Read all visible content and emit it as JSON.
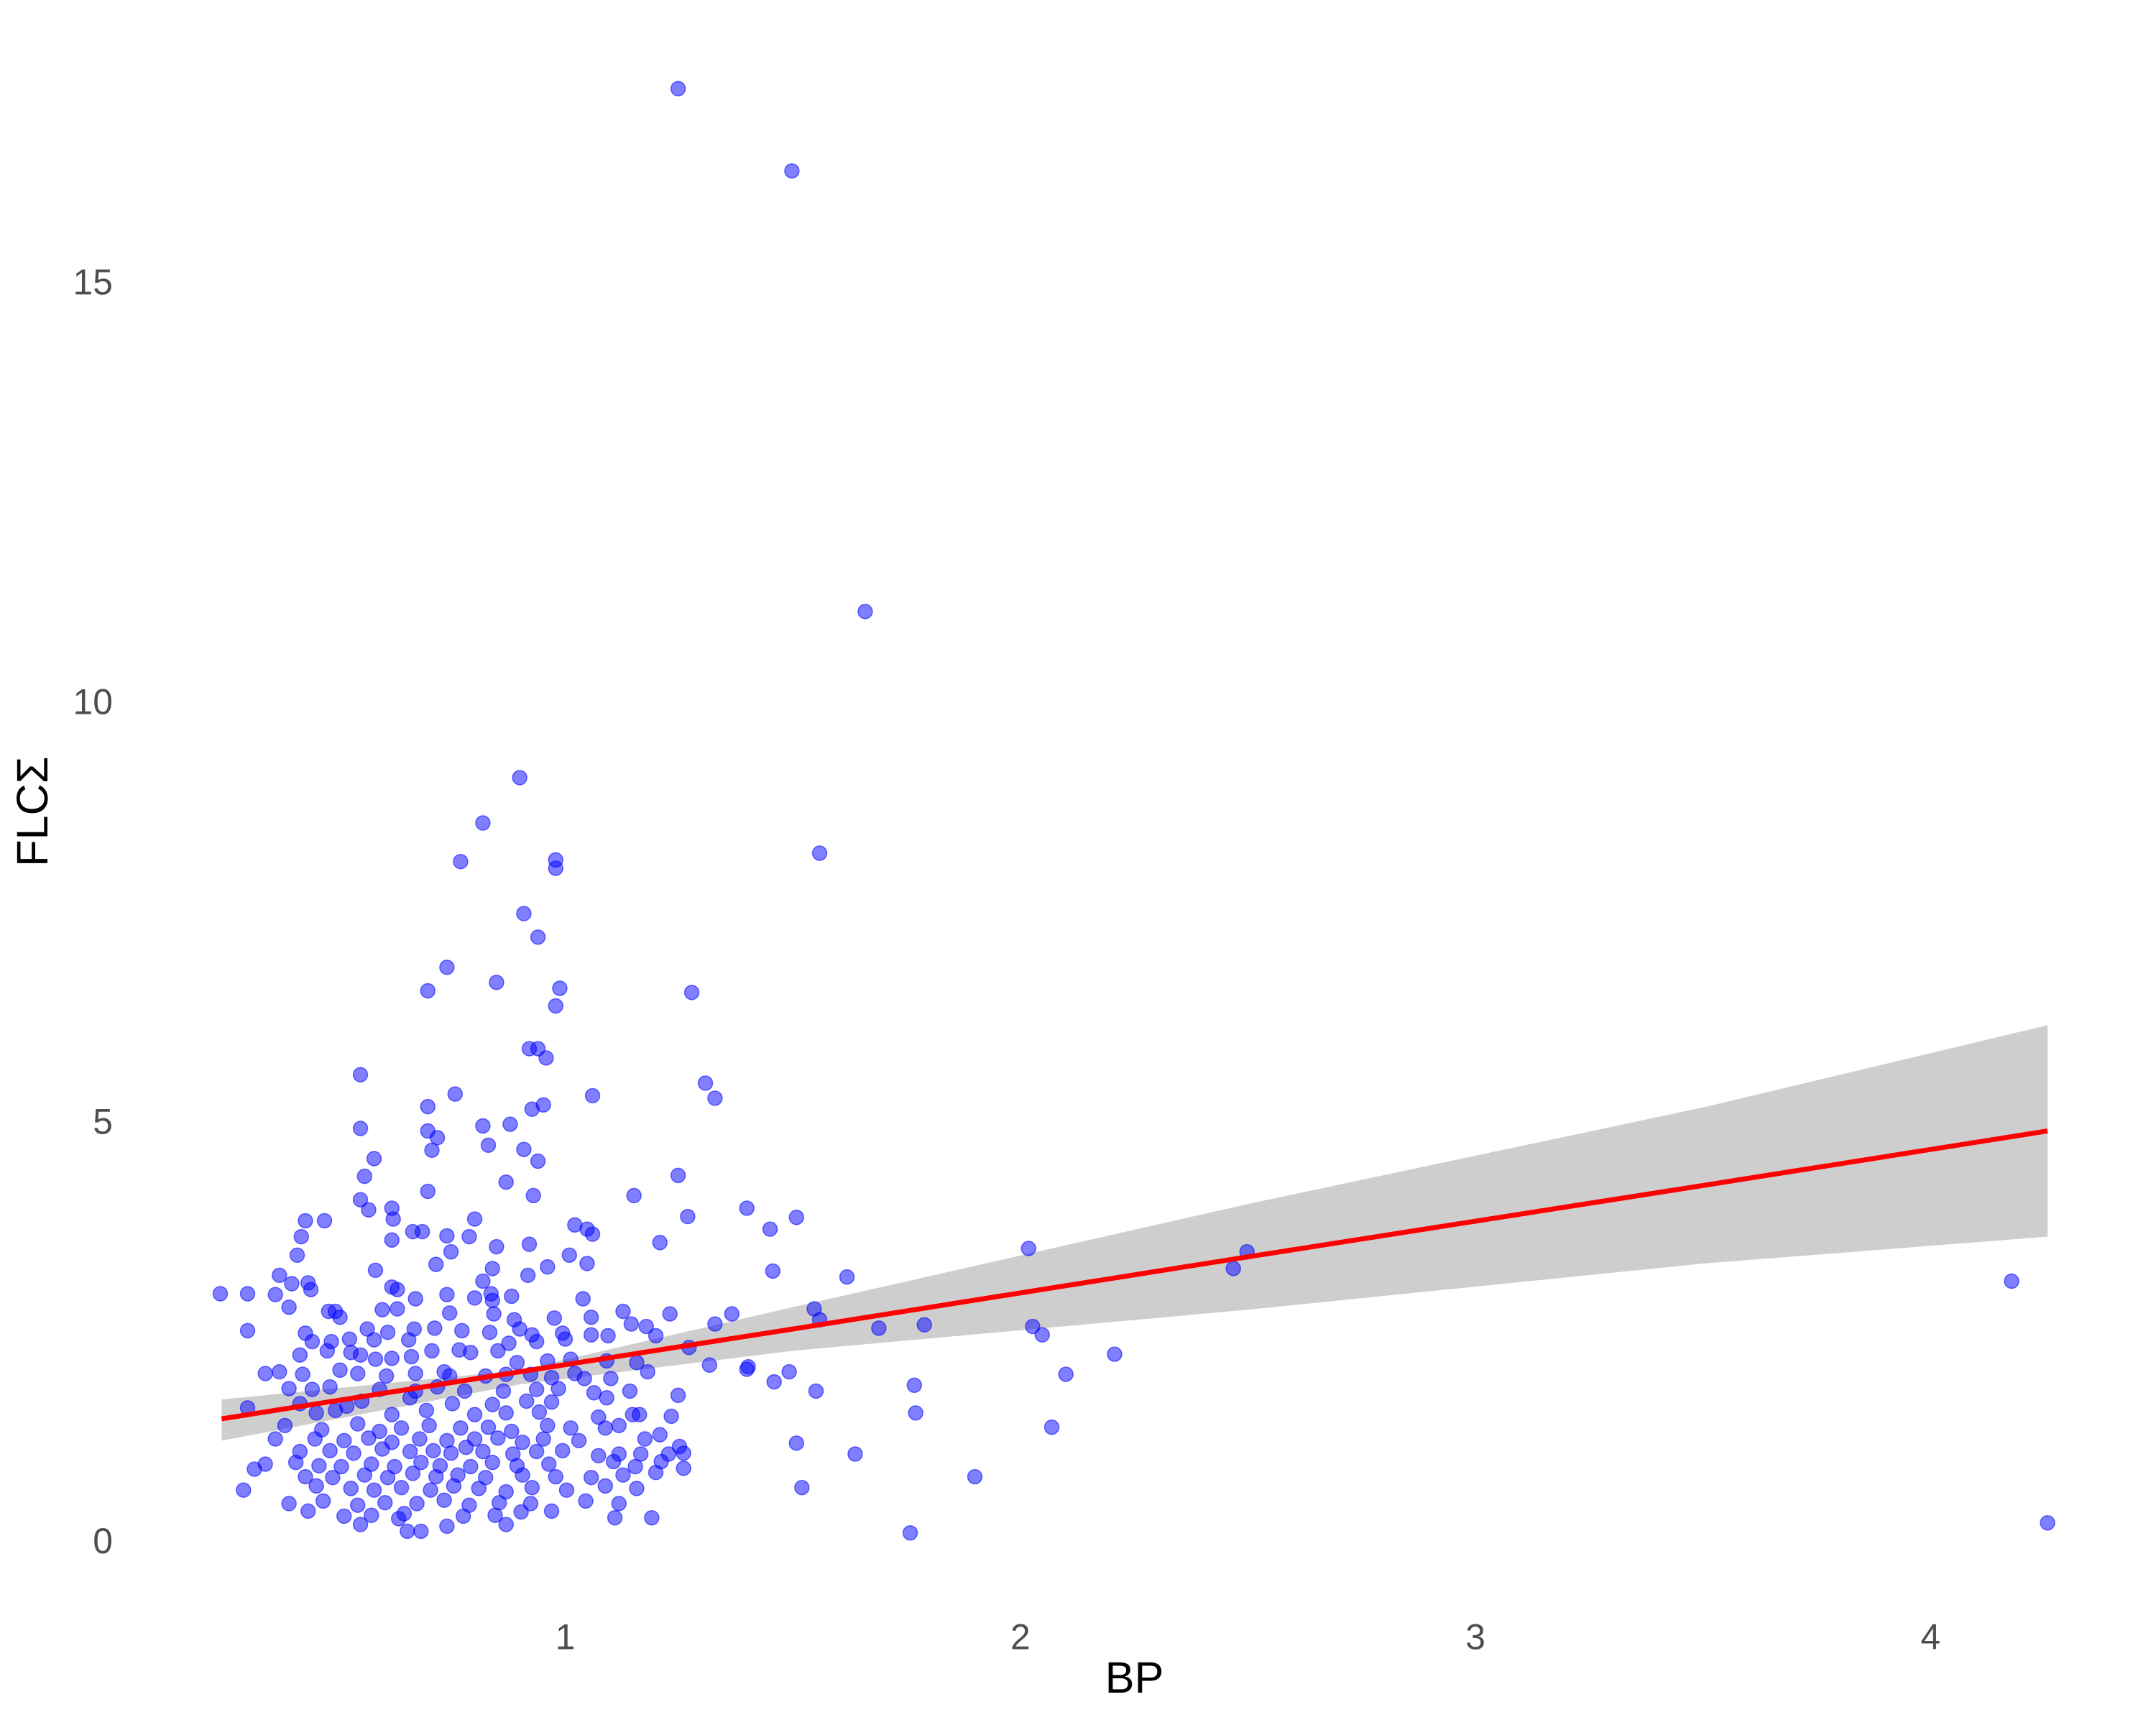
{
  "chart_data": {
    "type": "scatter",
    "x_label": "BP",
    "y_label": "FLCΣ",
    "xlim": [
      0.045,
      4.456
    ],
    "ylim": [
      -0.7,
      18.2
    ],
    "xticks": [
      1,
      2,
      3,
      4
    ],
    "yticks": [
      0,
      5,
      10,
      15
    ],
    "grid": true,
    "minor_grid": true,
    "points": {
      "color": "#0000ff",
      "x": [
        1.248,
        1.498,
        1.659,
        1.559,
        0.9,
        0.819,
        0.77,
        0.979,
        0.979,
        0.909,
        0.94,
        0.74,
        0.849,
        0.698,
        0.988,
        1.278,
        0.979,
        0.921,
        0.94,
        0.958,
        0.55,
        1.308,
        1.329,
        0.758,
        1.06,
        0.698,
        0.927,
        0.952,
        0.819,
        0.879,
        0.55,
        0.698,
        0.719,
        0.831,
        0.909,
        0.707,
        0.58,
        0.94,
        0.559,
        1.248,
        0.87,
        0.698,
        0.93,
        1.151,
        0.55,
        0.568,
        0.619,
        1.399,
        0.471,
        0.429,
        0.801,
        0.622,
        1.269,
        1.508,
        1.021,
        1.048,
        1.06,
        0.686,
        0.665,
        1.45,
        0.619,
        0.74,
        0.789,
        0.42,
        1.208,
        0.921,
        0.849,
        0.749,
        1.009,
        0.411,
        2.018,
        2.498,
        2.468,
        4.178,
        1.456,
        0.583,
        0.716,
        1.048,
        0.961,
        0.84,
        0.918,
        1.619,
        0.372,
        0.435,
        0.619,
        0.819,
        0.631,
        0.399,
        0.302,
        0.242,
        0.363,
        0.441,
        0.74,
        0.801,
        0.837,
        0.84,
        0.671,
        0.882,
        1.039,
        0.393,
        0.598,
        0.631,
        1.127,
        1.23,
        1.366,
        1.547,
        0.48,
        0.495,
        0.505,
        0.746,
        0.843,
        0.888,
        0.976,
        1.559,
        1.057,
        1.329,
        1.145,
        1.178,
        1.689,
        1.789,
        2.027,
        2.048,
        0.302,
        0.565,
        0.61,
        0.668,
        0.713,
        0.773,
        0.834,
        0.9,
        0.927,
        0.994,
        1.057,
        1.094,
        0.526,
        0.58,
        0.656,
        0.429,
        0.444,
        0.486,
        0.876,
        0.937,
        1.0,
        1.199,
        1.272,
        0.477,
        0.529,
        0.707,
        0.767,
        0.792,
        0.852,
        0.417,
        0.55,
        0.583,
        0.619,
        0.662,
        2.207,
        0.894,
        0.961,
        1.012,
        1.091,
        1.157,
        1.317,
        1.399,
        1.402,
        0.341,
        0.372,
        0.423,
        0.505,
        0.544,
        0.607,
        0.671,
        0.734,
        0.746,
        0.825,
        0.87,
        0.924,
        0.97,
        1.021,
        1.042,
        1.1,
        1.181,
        2.1,
        1.459,
        1.492,
        1.767,
        0.393,
        0.444,
        0.483,
        0.592,
        0.671,
        0.719,
        0.779,
        0.864,
        0.937,
        0.985,
        1.063,
        1.142,
        1.551,
        1.248,
        0.417,
        0.52,
        0.553,
        0.659,
        0.752,
        0.84,
        0.915,
        0.97,
        1.091,
        0.302,
        0.453,
        0.495,
        0.619,
        0.695,
        0.801,
        0.87,
        0.943,
        1.073,
        1.148,
        1.163,
        1.77,
        1.233,
        0.384,
        0.465,
        0.544,
        0.592,
        0.64,
        0.701,
        0.77,
        0.831,
        0.882,
        0.961,
        1.012,
        2.069,
        1.088,
        1.118,
        0.363,
        0.45,
        0.514,
        0.568,
        0.619,
        0.68,
        0.74,
        0.801,
        0.852,
        0.906,
        0.952,
        1.03,
        1.175,
        1.208,
        1.508,
        1.251,
        0.417,
        0.483,
        0.535,
        0.598,
        0.659,
        0.71,
        0.749,
        0.782,
        0.819,
        0.885,
        0.937,
        0.994,
        1.073,
        1.118,
        1.166,
        1.227,
        1.26,
        1.637,
        0.341,
        0.408,
        0.459,
        0.508,
        0.574,
        0.625,
        0.683,
        0.725,
        0.792,
        0.84,
        0.894,
        0.964,
        1.106,
        1.154,
        1.211,
        1.26,
        0.317,
        0.429,
        0.489,
        0.559,
        0.61,
        0.665,
        0.716,
        0.764,
        0.825,
        0.906,
        0.979,
        1.057,
        1.127,
        1.199,
        1.9,
        0.293,
        0.453,
        0.529,
        0.58,
        0.64,
        0.704,
        0.755,
        0.81,
        0.87,
        0.927,
        1.003,
        1.088,
        1.157,
        1.52,
        0.393,
        0.468,
        0.544,
        0.604,
        0.674,
        0.734,
        0.789,
        0.855,
        0.924,
        1.045,
        1.118,
        0.435,
        0.514,
        0.574,
        0.646,
        0.776,
        0.846,
        0.903,
        0.97,
        1.109,
        1.19,
        0.55,
        0.634,
        0.74,
        0.87,
        0.653,
        0.683,
        1.758,
        4.257
      ],
      "y": [
        17.34,
        16.36,
        11.11,
        8.23,
        9.13,
        8.59,
        8.13,
        8.15,
        8.05,
        7.51,
        7.23,
        6.87,
        6.69,
        6.59,
        6.62,
        6.57,
        6.41,
        5.9,
        5.9,
        5.79,
        5.59,
        5.49,
        5.31,
        5.36,
        5.34,
        5.21,
        5.18,
        5.23,
        4.98,
        5.0,
        4.95,
        4.92,
        4.84,
        4.75,
        4.7,
        4.69,
        4.59,
        4.56,
        4.38,
        4.39,
        4.31,
        4.2,
        4.15,
        4.15,
        4.1,
        3.98,
        4.0,
        4.0,
        3.85,
        3.85,
        3.87,
        3.87,
        3.9,
        3.89,
        3.8,
        3.75,
        3.69,
        3.72,
        3.72,
        3.75,
        3.62,
        3.67,
        3.66,
        3.66,
        3.59,
        3.57,
        3.54,
        3.48,
        3.44,
        3.44,
        3.52,
        3.48,
        3.28,
        3.13,
        3.25,
        3.26,
        3.33,
        3.34,
        3.3,
        3.28,
        3.2,
        3.18,
        3.2,
        3.11,
        3.06,
        3.13,
        3.03,
        3.1,
        2.98,
        2.98,
        2.97,
        3.03,
        2.97,
        2.93,
        2.98,
        2.9,
        2.92,
        2.95,
        2.92,
        2.82,
        2.79,
        2.8,
        2.77,
        2.74,
        2.74,
        2.8,
        2.77,
        2.77,
        2.7,
        2.75,
        2.74,
        2.67,
        2.69,
        2.67,
        2.7,
        2.62,
        2.62,
        2.59,
        2.57,
        2.61,
        2.59,
        2.49,
        2.54,
        2.56,
        2.52,
        2.56,
        2.57,
        2.54,
        2.52,
        2.56,
        2.49,
        2.51,
        2.49,
        2.48,
        2.44,
        2.43,
        2.43,
        2.51,
        2.41,
        2.41,
        2.39,
        2.41,
        2.44,
        2.48,
        2.34,
        2.3,
        2.28,
        2.3,
        2.31,
        2.28,
        2.3,
        2.25,
        2.25,
        2.2,
        2.21,
        2.23,
        2.26,
        2.16,
        2.18,
        2.2,
        2.18,
        2.16,
        2.13,
        2.08,
        2.11,
        2.03,
        2.05,
        2.02,
        2.07,
        2.03,
        2.0,
        2.03,
        2.05,
        2.0,
        2.0,
        2.02,
        2.02,
        1.98,
        2.03,
        1.97,
        1.97,
        2.05,
        2.02,
        1.93,
        2.05,
        1.89,
        1.85,
        1.84,
        1.87,
        1.84,
        1.82,
        1.87,
        1.82,
        1.82,
        1.84,
        1.85,
        1.8,
        1.82,
        1.82,
        1.77,
        1.67,
        1.64,
        1.7,
        1.74,
        1.67,
        1.66,
        1.7,
        1.69,
        1.74,
        1.62,
        1.56,
        1.59,
        1.54,
        1.59,
        1.54,
        1.56,
        1.57,
        1.51,
        1.54,
        1.54,
        1.56,
        1.52,
        1.41,
        1.36,
        1.43,
        1.34,
        1.38,
        1.41,
        1.38,
        1.39,
        1.34,
        1.41,
        1.38,
        1.39,
        1.38,
        1.41,
        1.25,
        1.25,
        1.23,
        1.26,
        1.21,
        1.25,
        1.23,
        1.25,
        1.26,
        1.21,
        1.25,
        1.23,
        1.25,
        1.3,
        1.2,
        1.16,
        1.1,
        1.11,
        1.08,
        1.13,
        1.1,
        1.11,
        1.08,
        1.15,
        1.1,
        1.07,
        1.1,
        1.11,
        1.05,
        1.07,
        1.07,
        1.07,
        1.08,
        1.07,
        0.95,
        0.97,
        0.93,
        0.92,
        0.95,
        0.92,
        0.97,
        0.93,
        0.92,
        0.97,
        0.93,
        0.95,
        0.98,
        0.92,
        0.98,
        0.9,
        0.89,
        0.8,
        0.79,
        0.82,
        0.79,
        0.84,
        0.8,
        0.82,
        0.79,
        0.82,
        0.8,
        0.79,
        0.82,
        0.85,
        0.8,
        0.64,
        0.69,
        0.66,
        0.64,
        0.67,
        0.64,
        0.69,
        0.66,
        0.62,
        0.67,
        0.64,
        0.69,
        0.66,
        0.67,
        0.48,
        0.51,
        0.46,
        0.49,
        0.48,
        0.52,
        0.46,
        0.49,
        0.48,
        0.51,
        0.48,
        0.39,
        0.33,
        0.34,
        0.36,
        0.33,
        0.34,
        0.38,
        0.39,
        0.31,
        0.31,
        0.23,
        0.3,
        0.21,
        0.23,
        0.15,
        0.15,
        0.13,
        0.25
      ]
    },
    "fit": {
      "color": "#ff0000",
      "band_color": "#bebebe",
      "x": [
        0.245,
        0.9,
        1.5,
        2.5,
        3.5,
        4.257
      ],
      "y": [
        1.49,
        2.05,
        2.56,
        3.42,
        4.27,
        4.92
      ],
      "lower": [
        1.23,
        1.9,
        2.3,
        2.79,
        3.34,
        3.66
      ],
      "upper": [
        1.72,
        2.07,
        2.82,
        4.05,
        5.2,
        6.18
      ]
    }
  }
}
